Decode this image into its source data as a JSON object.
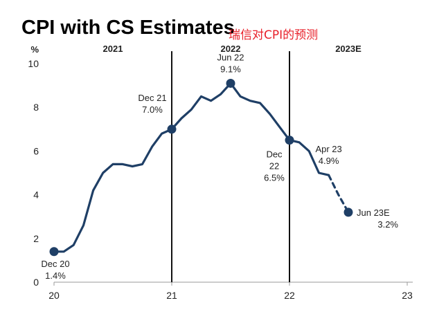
{
  "title": "CPI with CS Estimates",
  "subtitle": "瑞信对CPI的预测",
  "chart_data": {
    "type": "line",
    "unit_label": "%",
    "period_labels": [
      "2021",
      "2022",
      "2023E"
    ],
    "ylim": [
      0,
      10
    ],
    "y_ticks": [
      0,
      2,
      4,
      6,
      8,
      10
    ],
    "xlim": [
      2020.917,
      2023.917
    ],
    "x_ticks": [
      {
        "value": 2020.917,
        "label": "20"
      },
      {
        "value": 2021.917,
        "label": "21"
      },
      {
        "value": 2022.917,
        "label": "22"
      },
      {
        "value": 2023.917,
        "label": "23"
      }
    ],
    "period_dividers": [
      2021.917,
      2022.917
    ],
    "grid": false,
    "line_color": "#1f3f66",
    "series": [
      {
        "style": "solid",
        "x": [
          2020.917,
          2021.0,
          2021.083,
          2021.167,
          2021.25,
          2021.333,
          2021.417,
          2021.5,
          2021.583,
          2021.667,
          2021.75,
          2021.833,
          2021.917,
          2022.0,
          2022.083,
          2022.167,
          2022.25,
          2022.333,
          2022.417,
          2022.5,
          2022.583,
          2022.667,
          2022.75,
          2022.833,
          2022.917,
          2023.0,
          2023.083,
          2023.167,
          2023.25
        ],
        "y": [
          1.4,
          1.4,
          1.7,
          2.6,
          4.2,
          5.0,
          5.4,
          5.4,
          5.3,
          5.4,
          6.2,
          6.8,
          7.0,
          7.5,
          7.9,
          8.5,
          8.3,
          8.6,
          9.1,
          8.5,
          8.3,
          8.2,
          7.7,
          7.1,
          6.5,
          6.4,
          6.0,
          5.0,
          4.9
        ]
      },
      {
        "style": "dashed",
        "x": [
          2023.25,
          2023.333,
          2023.417
        ],
        "y": [
          4.9,
          4.0,
          3.2
        ]
      }
    ],
    "highlights": [
      {
        "x": 2020.917,
        "y": 1.4,
        "lines": [
          "Dec 20",
          "1.4%"
        ],
        "pos": "below"
      },
      {
        "x": 2021.917,
        "y": 7.0,
        "lines": [
          "Dec 21",
          "7.0%"
        ],
        "pos": "upper-left"
      },
      {
        "x": 2022.417,
        "y": 9.1,
        "lines": [
          "Jun 22",
          "9.1%"
        ],
        "pos": "above"
      },
      {
        "x": 2022.917,
        "y": 6.5,
        "lines": [
          "Dec",
          "22",
          "6.5%"
        ],
        "pos": "lower-left"
      },
      {
        "x": 2023.417,
        "y": 3.2,
        "lines": [
          "Jun 23E",
          "3.2%"
        ],
        "pos": "right"
      }
    ],
    "annotations": [
      {
        "x": 2023.25,
        "y": 4.9,
        "lines": [
          "Apr 23",
          "4.9%"
        ],
        "pos": "above"
      }
    ]
  }
}
